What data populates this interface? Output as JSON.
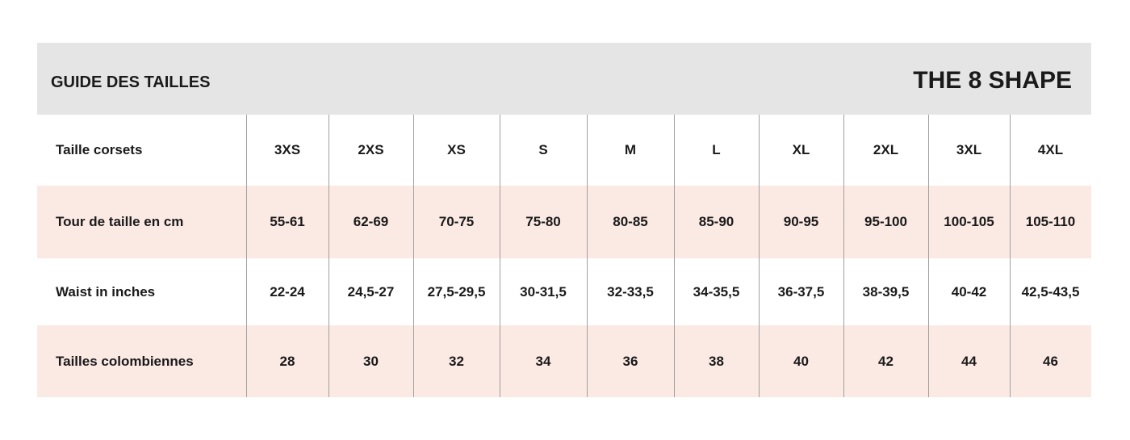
{
  "header": {
    "title": "GUIDE DES TAILLES",
    "brand": "THE 8 SHAPE"
  },
  "table": {
    "rows": [
      [
        "Taille corsets",
        "3XS",
        "2XS",
        "XS",
        "S",
        "M",
        "L",
        "XL",
        "2XL",
        "3XL",
        "4XL"
      ],
      [
        "Tour de taille en cm",
        "55-61",
        "62-69",
        "70-75",
        "75-80",
        "80-85",
        "85-90",
        "90-95",
        "95-100",
        "100-105",
        "105-110"
      ],
      [
        "Waist in inches",
        "22-24",
        "24,5-27",
        "27,5-29,5",
        "30-31,5",
        "32-33,5",
        "34-35,5",
        "36-37,5",
        "38-39,5",
        "40-42",
        "42,5-43,5"
      ],
      [
        "Tailles colombiennes",
        "28",
        "30",
        "32",
        "34",
        "36",
        "38",
        "40",
        "42",
        "44",
        "46"
      ]
    ]
  }
}
